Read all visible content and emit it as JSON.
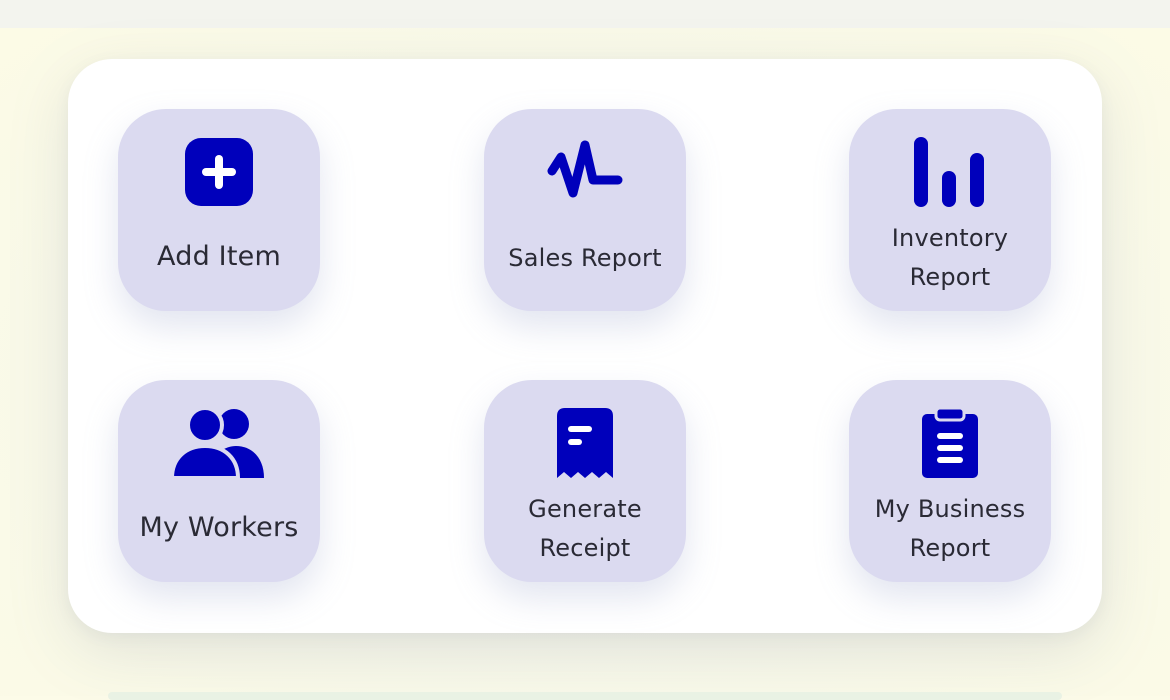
{
  "colors": {
    "accent": "#0000bb",
    "tile_bg": "#dbdaf0",
    "label_text": "#2a2a35",
    "panel_bg": "#ffffff"
  },
  "tiles": [
    {
      "id": "add-item",
      "icon": "plus-square-icon",
      "label_lines": [
        "Add Item"
      ]
    },
    {
      "id": "sales-report",
      "icon": "pulse-icon",
      "label_lines": [
        "Sales Report"
      ]
    },
    {
      "id": "inventory-report",
      "icon": "bar-chart-icon",
      "label_lines": [
        "Inventory",
        "Report"
      ]
    },
    {
      "id": "my-workers",
      "icon": "users-icon",
      "label_lines": [
        "My Workers"
      ]
    },
    {
      "id": "generate-receipt",
      "icon": "receipt-icon",
      "label_lines": [
        "Generate",
        "Receipt"
      ]
    },
    {
      "id": "my-business-report",
      "icon": "clipboard-icon",
      "label_lines": [
        "My Business",
        "Report"
      ]
    }
  ]
}
